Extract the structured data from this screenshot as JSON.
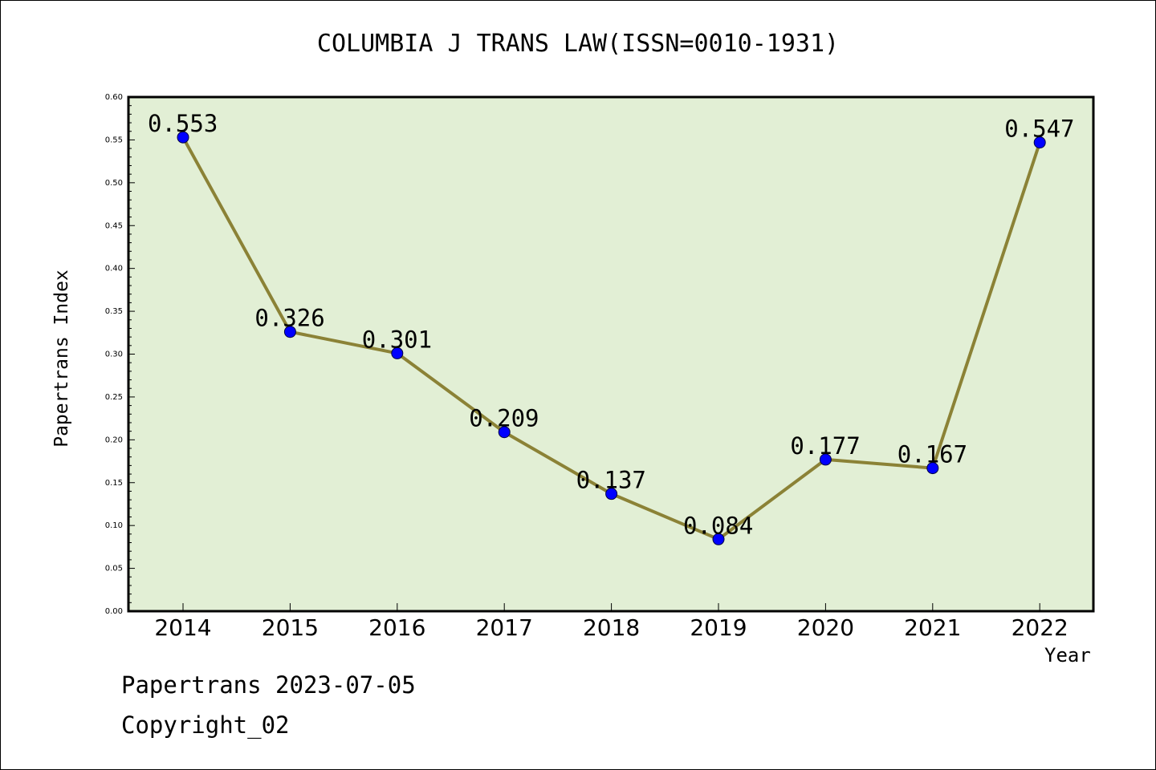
{
  "chart_data": {
    "type": "line",
    "title": "COLUMBIA J TRANS LAW(ISSN=0010-1931)",
    "xlabel": "Year",
    "ylabel": "Papertrans Index",
    "categories": [
      "2014",
      "2015",
      "2016",
      "2017",
      "2018",
      "2019",
      "2020",
      "2021",
      "2022"
    ],
    "series": [
      {
        "values": [
          0.553,
          0.326,
          0.301,
          0.209,
          0.137,
          0.084,
          0.177,
          0.167,
          0.547
        ],
        "labels": [
          "0.553",
          "0.326",
          "0.301",
          "0.209",
          "0.137",
          "0.084",
          "0.177",
          "0.167",
          "0.547"
        ]
      }
    ],
    "ylim": [
      0,
      0.6
    ],
    "yticks": [
      "0.00",
      "0.05",
      "0.10",
      "0.15",
      "0.20",
      "0.25",
      "0.30",
      "0.35",
      "0.40",
      "0.45",
      "0.50",
      "0.55",
      "0.60"
    ],
    "grid": false,
    "colors": {
      "plot_background": "#e2efd5",
      "line": "#8b8236",
      "marker": "#0000ff"
    }
  },
  "footer": {
    "date_text": "Papertrans 2023-07-05",
    "copyright_text": "Copyright_02"
  }
}
